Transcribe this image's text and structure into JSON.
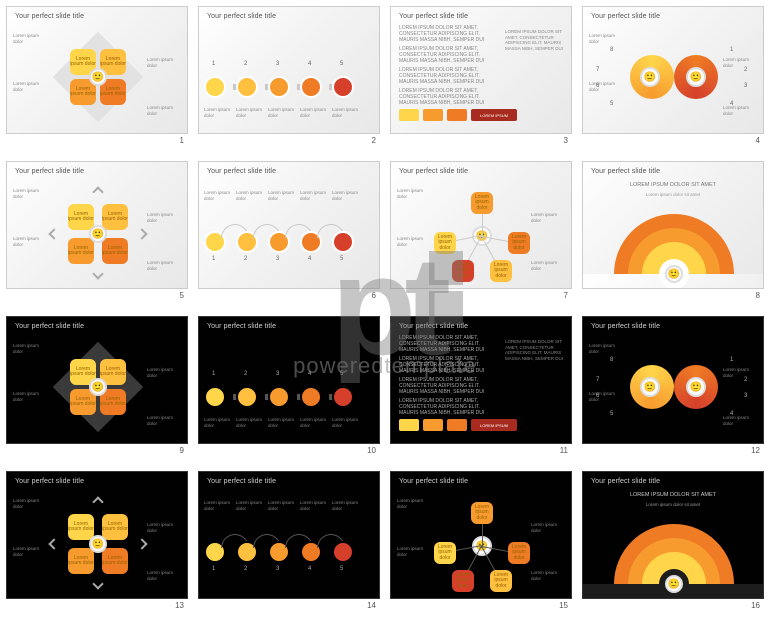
{
  "watermark": {
    "logo": "pt",
    "text": "poweredtemplate"
  },
  "palette": {
    "yellow1": "#ffd54a",
    "yellow2": "#ffbf3f",
    "orange1": "#f79b2e",
    "orange2": "#ef7b24",
    "red1": "#d6402b",
    "red2": "#a82b1f",
    "grey_line": "#c9c9c9",
    "grey_line_dark": "#555555"
  },
  "common": {
    "title": "Your perfect slide title",
    "lorem_line": "Lorem ipsum dolor",
    "lorem_para": "LOREM IPSUM DOLOR SIT AMET, CONSECTETUR ADIPISCING ELIT. MAURIS MASSA NIBH, SEMPER DUI",
    "box_label": "Lorem ipsum dolor"
  },
  "slides": [
    {
      "n": 1,
      "theme": "light",
      "type": "petals4"
    },
    {
      "n": 2,
      "theme": "light",
      "type": "chain5"
    },
    {
      "n": 3,
      "theme": "light",
      "type": "text-tiles"
    },
    {
      "n": 4,
      "theme": "light",
      "type": "infinity8"
    },
    {
      "n": 5,
      "theme": "light",
      "type": "matrix4"
    },
    {
      "n": 6,
      "theme": "light",
      "type": "chain5b"
    },
    {
      "n": 7,
      "theme": "light",
      "type": "org5"
    },
    {
      "n": 8,
      "theme": "light",
      "type": "arc"
    },
    {
      "n": 9,
      "theme": "dark",
      "type": "petals4"
    },
    {
      "n": 10,
      "theme": "dark",
      "type": "chain5"
    },
    {
      "n": 11,
      "theme": "dark",
      "type": "text-tiles"
    },
    {
      "n": 12,
      "theme": "dark",
      "type": "infinity8"
    },
    {
      "n": 13,
      "theme": "dark",
      "type": "matrix4"
    },
    {
      "n": 14,
      "theme": "dark",
      "type": "chain5b"
    },
    {
      "n": 15,
      "theme": "dark",
      "type": "org5"
    },
    {
      "n": 16,
      "theme": "dark",
      "type": "arc"
    }
  ],
  "chain5": {
    "count": 5,
    "labels": [
      "1",
      "2",
      "3",
      "4",
      "5"
    ]
  },
  "chain5b": {
    "count": 5,
    "labels": [
      "1",
      "2",
      "3",
      "4",
      "5"
    ]
  },
  "infinity8": {
    "labels": [
      "1",
      "2",
      "3",
      "4",
      "5",
      "6",
      "7",
      "8"
    ]
  },
  "tiles": {
    "colors": [
      "#ffd54a",
      "#f79b2e",
      "#ef7b24",
      "#a82b1f"
    ],
    "rows": 4,
    "btn_label": "LOREM IPSUM"
  },
  "arc": {
    "colors_out_in": [
      "#ef7b24",
      "#f79b2e",
      "#ffd54a"
    ],
    "center_text": "Lorem ipsum dolor sit amet",
    "heading": "LOREM IPSUM DOLOR SIT AMET"
  }
}
